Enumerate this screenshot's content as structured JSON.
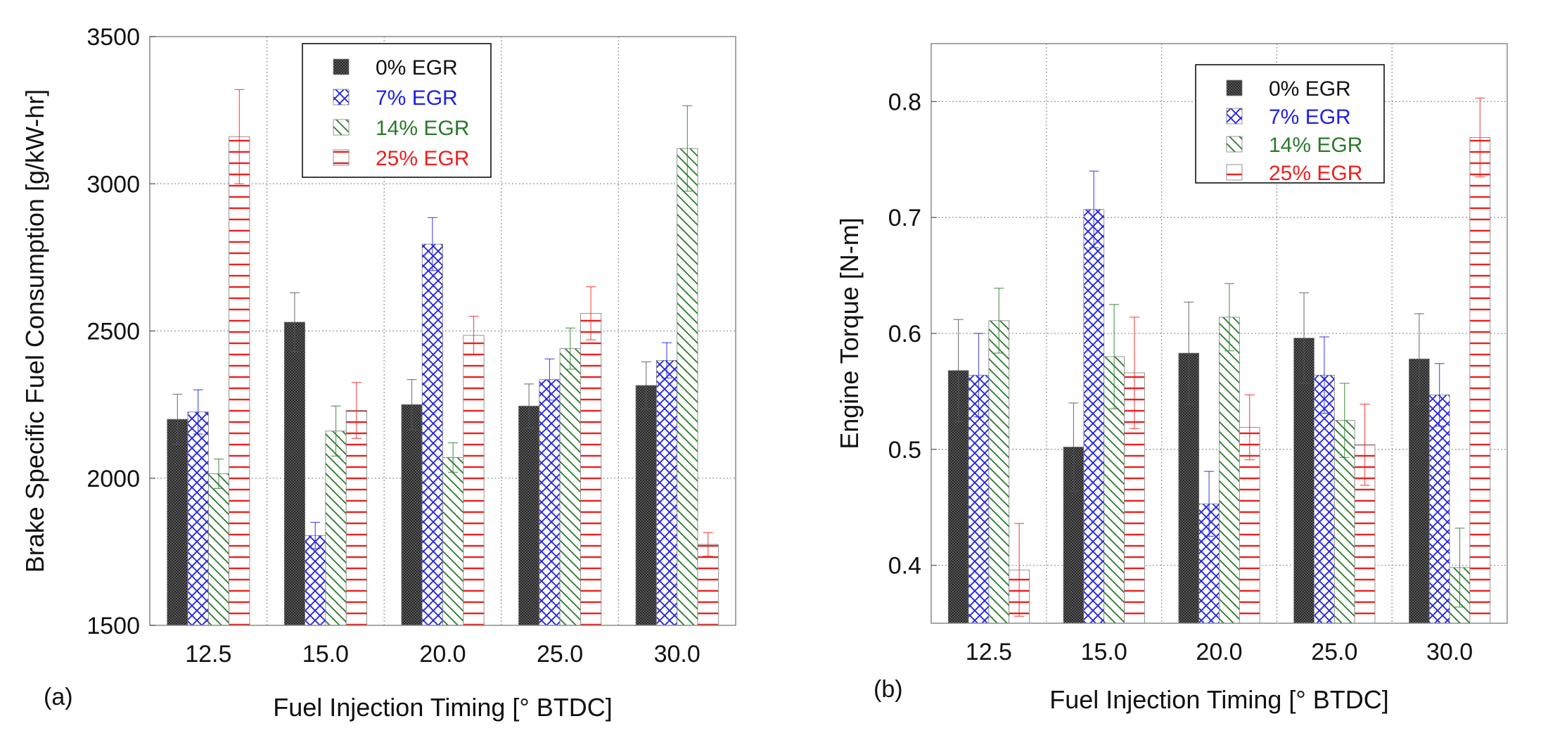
{
  "series_styles": [
    {
      "name": "0% EGR",
      "color": "#3a3a3a",
      "pattern": "dots-dark"
    },
    {
      "name": "7% EGR",
      "color": "#1f1fe6",
      "pattern": "crosshatch-blue"
    },
    {
      "name": "14% EGR",
      "color": "#2a7a2a",
      "pattern": "diagonal-green"
    },
    {
      "name": "25% EGR",
      "color": "#ee1f1f",
      "pattern": "horizontal-red"
    }
  ],
  "chart_data": [
    {
      "id": "a",
      "panel_label": "(a)",
      "type": "bar",
      "title": "",
      "xlabel": "Fuel Injection Timing [° BTDC]",
      "ylabel": "Brake Specific Fuel Consumption [g/kW-hr]",
      "categories": [
        "12.5",
        "15.0",
        "20.0",
        "25.0",
        "30.0"
      ],
      "ylim": [
        1500,
        3500
      ],
      "yticks": [
        1500,
        2000,
        2500,
        3000,
        3500
      ],
      "grid": true,
      "legend_position": "top-center",
      "series": [
        {
          "name": "0% EGR",
          "values": [
            2200,
            2530,
            2250,
            2245,
            2315
          ],
          "errors": [
            85,
            100,
            85,
            75,
            80
          ]
        },
        {
          "name": "7% EGR",
          "values": [
            2225,
            1805,
            2795,
            2335,
            2400
          ],
          "errors": [
            75,
            45,
            90,
            70,
            60
          ]
        },
        {
          "name": "14% EGR",
          "values": [
            2015,
            2160,
            2070,
            2440,
            3120
          ],
          "errors": [
            50,
            85,
            50,
            70,
            145
          ]
        },
        {
          "name": "25% EGR",
          "values": [
            3160,
            2230,
            2485,
            2560,
            1775
          ],
          "errors": [
            160,
            95,
            65,
            90,
            40
          ]
        }
      ]
    },
    {
      "id": "b",
      "panel_label": "(b)",
      "type": "bar",
      "title": "",
      "xlabel": "Fuel Injection Timing [° BTDC]",
      "ylabel": "Engine Torque [N-m]",
      "categories": [
        "12.5",
        "15.0",
        "20.0",
        "25.0",
        "30.0"
      ],
      "ylim": [
        0.35,
        0.85
      ],
      "yticks": [
        0.4,
        0.5,
        0.6,
        0.7,
        0.8
      ],
      "grid": true,
      "legend_position": "top-center",
      "series": [
        {
          "name": "0% EGR",
          "values": [
            0.568,
            0.502,
            0.583,
            0.596,
            0.578
          ],
          "errors": [
            0.044,
            0.038,
            0.044,
            0.039,
            0.039
          ]
        },
        {
          "name": "7% EGR",
          "values": [
            0.564,
            0.707,
            0.453,
            0.564,
            0.547
          ],
          "errors": [
            0.036,
            0.033,
            0.028,
            0.033,
            0.027
          ]
        },
        {
          "name": "14% EGR",
          "values": [
            0.611,
            0.58,
            0.614,
            0.525,
            0.398
          ],
          "errors": [
            0.028,
            0.045,
            0.029,
            0.032,
            0.034
          ]
        },
        {
          "name": "25% EGR",
          "values": [
            0.396,
            0.566,
            0.519,
            0.504,
            0.769
          ],
          "errors": [
            0.04,
            0.048,
            0.028,
            0.035,
            0.034
          ]
        }
      ]
    }
  ]
}
